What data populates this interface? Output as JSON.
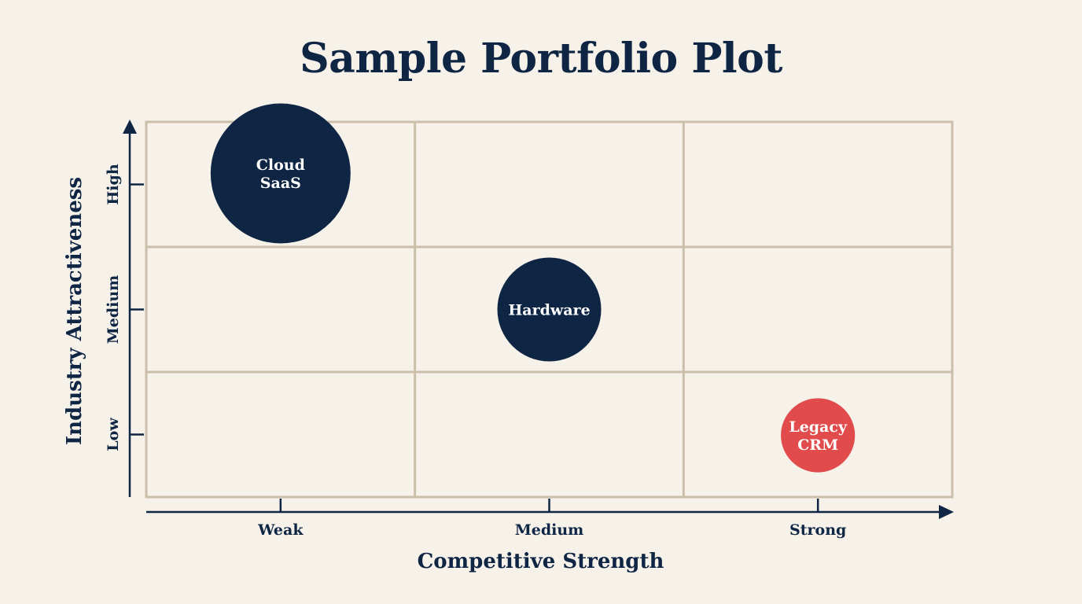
{
  "chart_data": {
    "type": "scatter",
    "subtype": "bubble-matrix",
    "title": "Sample Portfolio Plot",
    "xlabel": "Competitive Strength",
    "ylabel": "Industry Attractiveness",
    "x_categories": [
      "Weak",
      "Medium",
      "Strong"
    ],
    "y_categories": [
      "Low",
      "Medium",
      "High"
    ],
    "grid": "3x3",
    "points": [
      {
        "label_lines": [
          "Cloud",
          "SaaS"
        ],
        "x": "Weak",
        "y": "High",
        "size": 1.0,
        "color": "#0f2544"
      },
      {
        "label_lines": [
          "Hardware"
        ],
        "x": "Medium",
        "y": "Medium",
        "size": 0.55,
        "color": "#0f2544"
      },
      {
        "label_lines": [
          "Legacy",
          "CRM"
        ],
        "x": "Strong",
        "y": "Low",
        "size": 0.28,
        "color": "#e24b4b"
      }
    ],
    "colors": {
      "text": "#0f2544",
      "grid": "#cbbfa9",
      "background": "#f6f2ea"
    }
  }
}
